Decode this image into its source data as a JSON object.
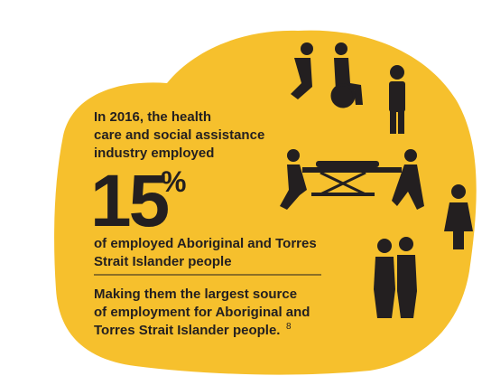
{
  "intro": [
    "In 2016, the health",
    "care and social assistance",
    "industry employed"
  ],
  "figure": {
    "number": "15",
    "unit": "%"
  },
  "subject": [
    "of employed Aboriginal and Torres",
    "Strait Islander people"
  ],
  "conclusion": [
    "Making them the largest source",
    "of employment for Aboriginal and",
    "Torres Strait Islander people."
  ],
  "footnote": "8"
}
